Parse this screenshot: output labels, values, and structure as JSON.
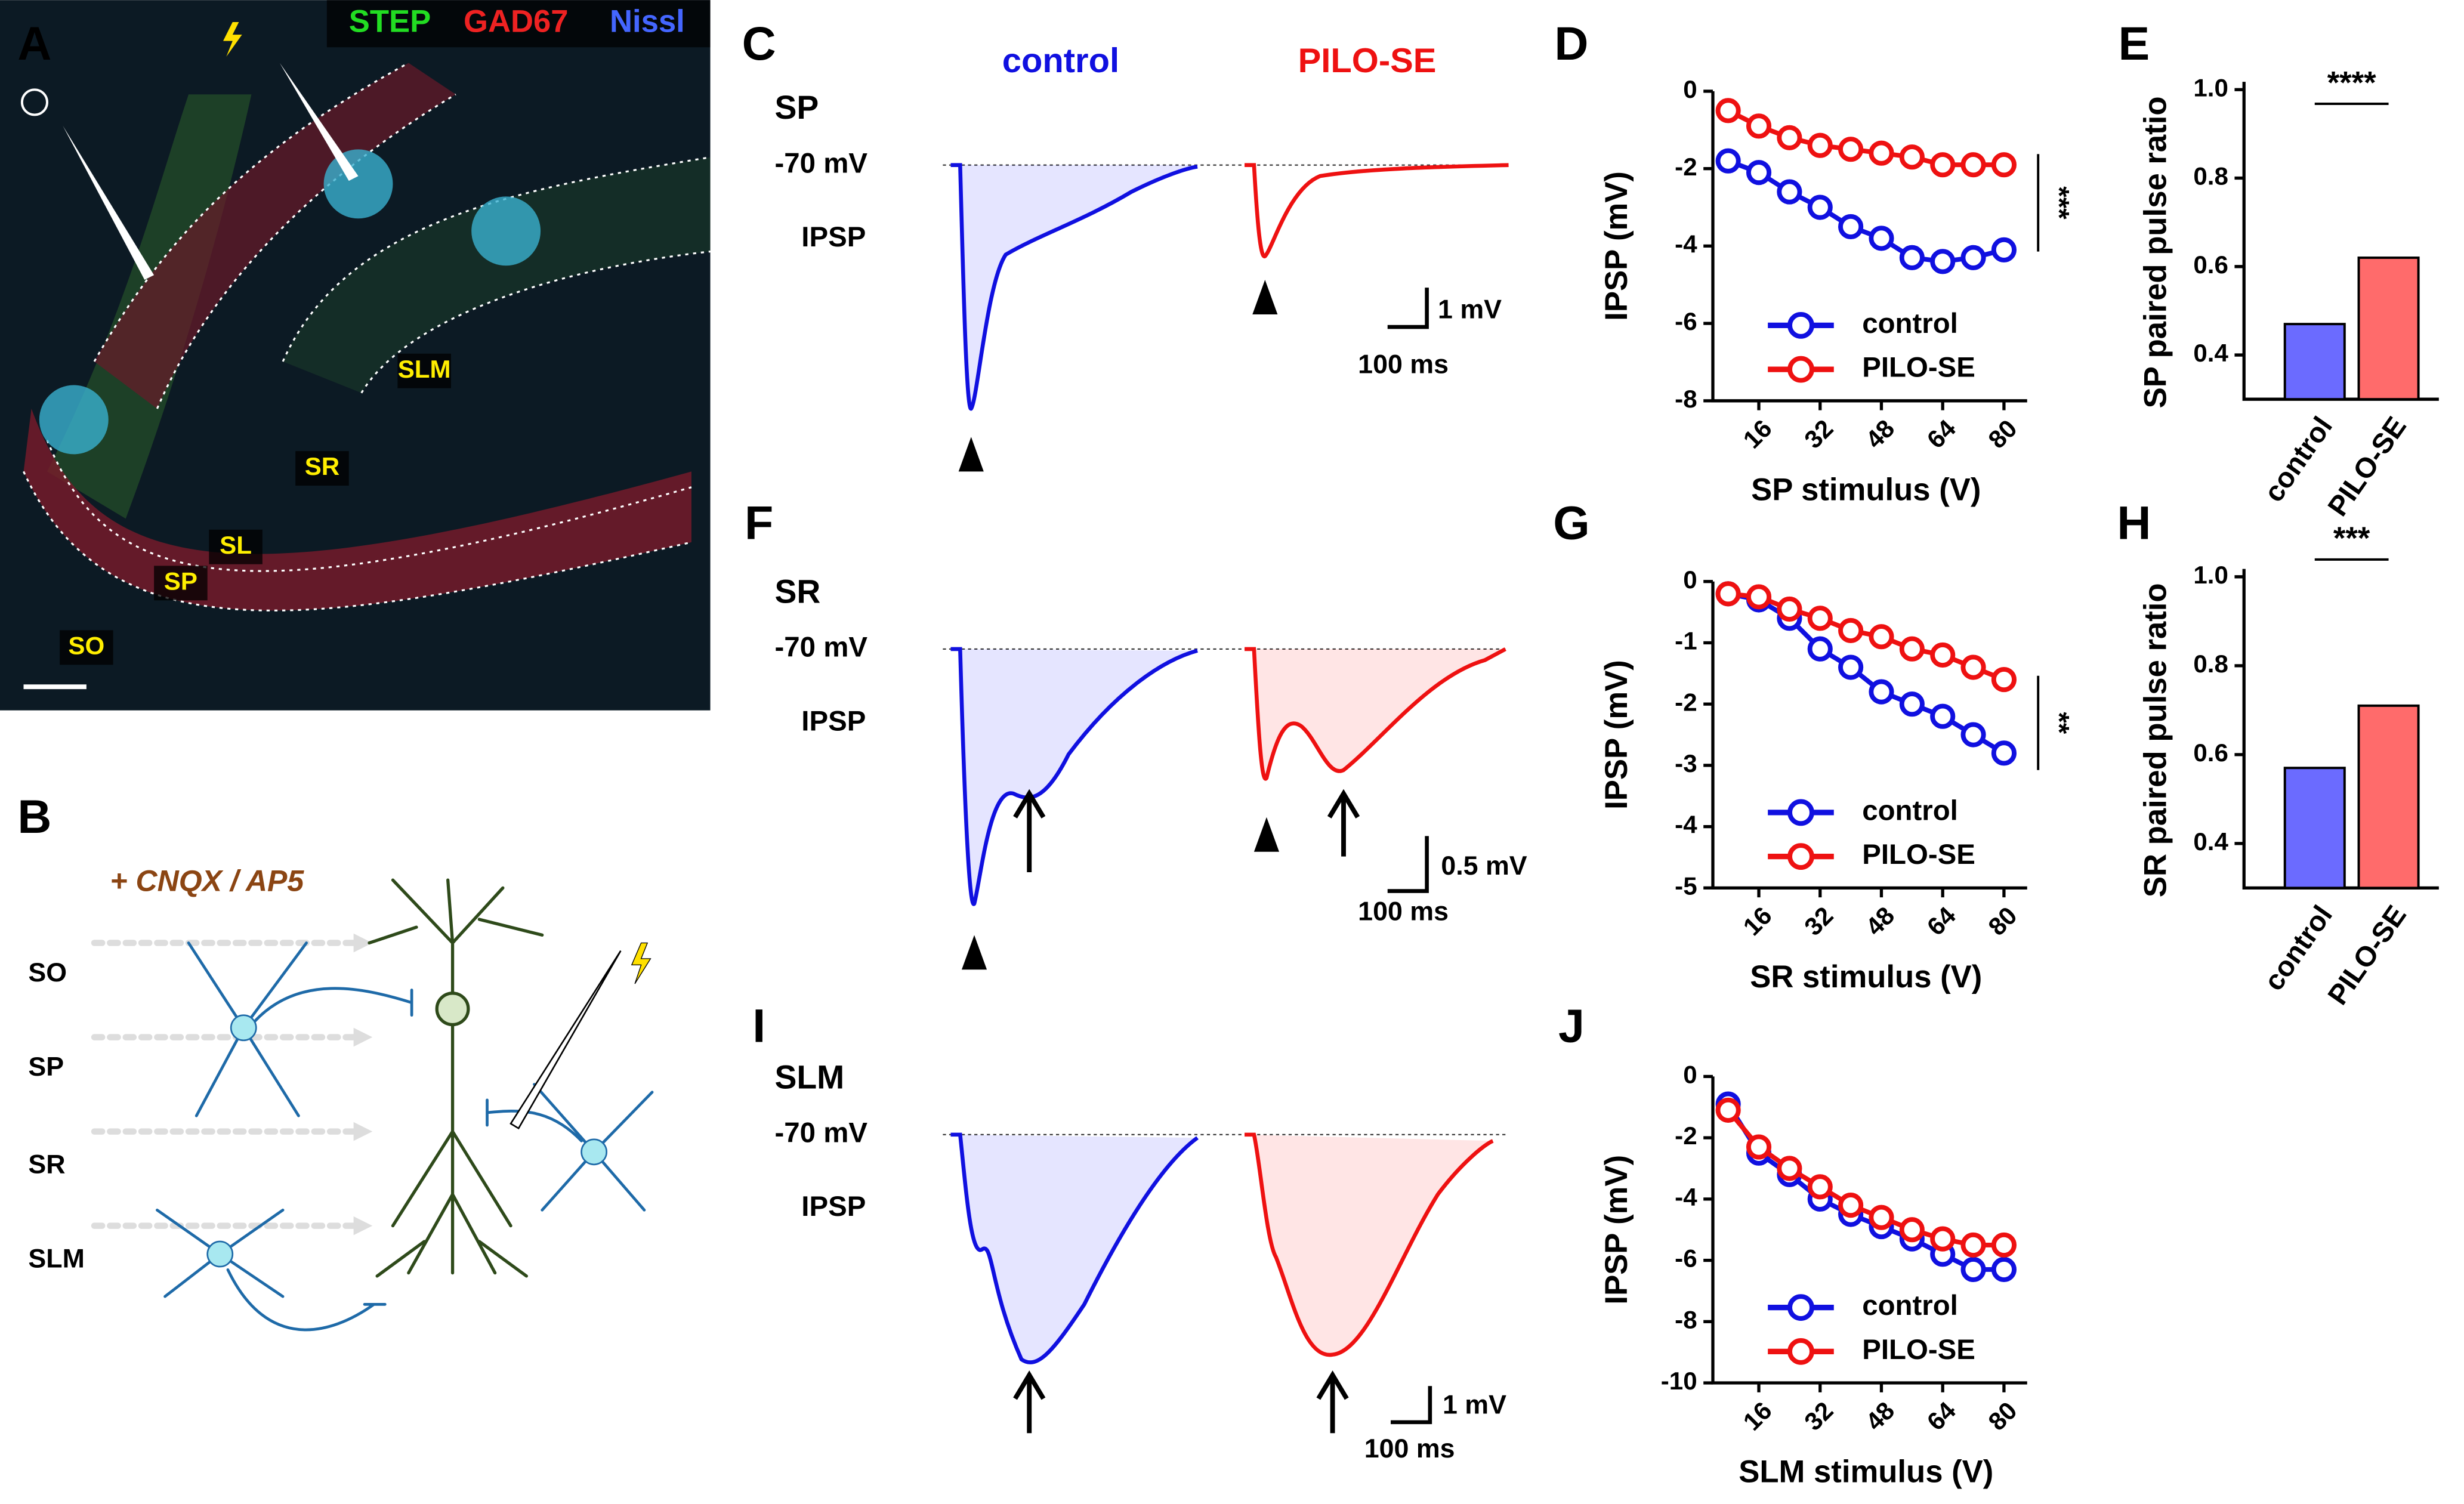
{
  "panel_letters": [
    "A",
    "B",
    "C",
    "D",
    "E",
    "F",
    "G",
    "H",
    "I",
    "J"
  ],
  "image_panel": {
    "channels": [
      "STEP",
      "GAD67",
      "Nissl"
    ],
    "layers": [
      "SLM",
      "SR",
      "SL",
      "SP",
      "SO"
    ]
  },
  "diagram": {
    "drug": "+ CNQX / AP5",
    "layers": [
      "SO",
      "SP",
      "SR",
      "SLM"
    ]
  },
  "traces": {
    "conditions": [
      "control",
      "PILO-SE"
    ],
    "rows": [
      {
        "layer": "SP",
        "baseline": "-70 mV",
        "response": "IPSP",
        "scale_y": "1 mV",
        "scale_x": "100 ms"
      },
      {
        "layer": "SR",
        "baseline": "-70 mV",
        "response": "IPSP",
        "scale_y": "0.5 mV",
        "scale_x": "100 ms"
      },
      {
        "layer": "SLM",
        "baseline": "-70 mV",
        "response": "IPSP",
        "scale_y": "1 mV",
        "scale_x": "100 ms"
      }
    ]
  },
  "chart_data": [
    {
      "type": "line",
      "xlabel": "SP stimulus (V)",
      "ylabel": "IPSP (mV)",
      "annotation": "***",
      "x": [
        8,
        16,
        24,
        32,
        40,
        48,
        56,
        64,
        72,
        80
      ],
      "xlim": [
        4,
        84
      ],
      "xticks": [
        16,
        32,
        48,
        64,
        80
      ],
      "ylim": [
        -8,
        0
      ],
      "yticks": [
        0,
        -2,
        -4,
        -6,
        -8
      ],
      "legend": "lower right",
      "series": [
        {
          "name": "control",
          "color": "#1010e0",
          "values": [
            -1.8,
            -2.1,
            -2.6,
            -3.0,
            -3.5,
            -3.8,
            -4.3,
            -4.4,
            -4.3,
            -4.1
          ]
        },
        {
          "name": "PILO-SE",
          "color": "#ee1111",
          "values": [
            -0.5,
            -0.9,
            -1.2,
            -1.4,
            -1.5,
            -1.6,
            -1.7,
            -1.9,
            -1.9,
            -1.9
          ]
        }
      ]
    },
    {
      "type": "bar",
      "ylabel": "SP paired pulse ratio",
      "annotation": "****",
      "categories": [
        "control",
        "PILO-SE"
      ],
      "values": [
        0.47,
        0.62
      ],
      "colors": [
        "#6b6bff",
        "#ff6b6b"
      ],
      "ylim": [
        0.3,
        1
      ],
      "yticks": [
        0.4,
        0.6,
        0.8,
        {
          "value": 1,
          "label": "1.0"
        }
      ]
    },
    {
      "type": "line",
      "xlabel": "SR stimulus (V)",
      "ylabel": "IPSP (mV)",
      "annotation": "**",
      "x": [
        8,
        16,
        24,
        32,
        40,
        48,
        56,
        64,
        72,
        80
      ],
      "xlim": [
        4,
        84
      ],
      "xticks": [
        16,
        32,
        48,
        64,
        80
      ],
      "ylim": [
        -5,
        0
      ],
      "yticks": [
        0,
        -1,
        -2,
        -3,
        -4,
        -5
      ],
      "legend": "lower right",
      "series": [
        {
          "name": "control",
          "color": "#1010e0",
          "values": [
            -0.2,
            -0.3,
            -0.6,
            -1.1,
            -1.4,
            -1.8,
            -2.0,
            -2.2,
            -2.5,
            -2.8
          ]
        },
        {
          "name": "PILO-SE",
          "color": "#ee1111",
          "values": [
            -0.2,
            -0.25,
            -0.45,
            -0.6,
            -0.8,
            -0.9,
            -1.1,
            -1.2,
            -1.4,
            -1.6
          ]
        }
      ]
    },
    {
      "type": "bar",
      "ylabel": "SR paired pulse ratio",
      "annotation": "***",
      "categories": [
        "control",
        "PILO-SE"
      ],
      "values": [
        0.57,
        0.71
      ],
      "colors": [
        "#6b6bff",
        "#ff6b6b"
      ],
      "ylim": [
        0.3,
        1
      ],
      "yticks": [
        0.4,
        0.6,
        0.8,
        {
          "value": 1,
          "label": "1.0"
        }
      ]
    },
    {
      "type": "line",
      "xlabel": "SLM stimulus (V)",
      "ylabel": "IPSP (mV)",
      "x": [
        8,
        16,
        24,
        32,
        40,
        48,
        56,
        64,
        72,
        80
      ],
      "xlim": [
        4,
        84
      ],
      "xticks": [
        16,
        32,
        48,
        64,
        80
      ],
      "ylim": [
        -10,
        0
      ],
      "yticks": [
        0,
        -2,
        -4,
        -6,
        -8,
        -10
      ],
      "legend": "lower right",
      "series": [
        {
          "name": "control",
          "color": "#1010e0",
          "values": [
            -0.9,
            -2.5,
            -3.2,
            -4.0,
            -4.5,
            -4.9,
            -5.3,
            -5.8,
            -6.3,
            -6.3
          ]
        },
        {
          "name": "PILO-SE",
          "color": "#ee1111",
          "values": [
            -1.1,
            -2.3,
            -3.0,
            -3.6,
            -4.2,
            -4.6,
            -5.0,
            -5.3,
            -5.5,
            -5.5
          ]
        }
      ]
    }
  ]
}
